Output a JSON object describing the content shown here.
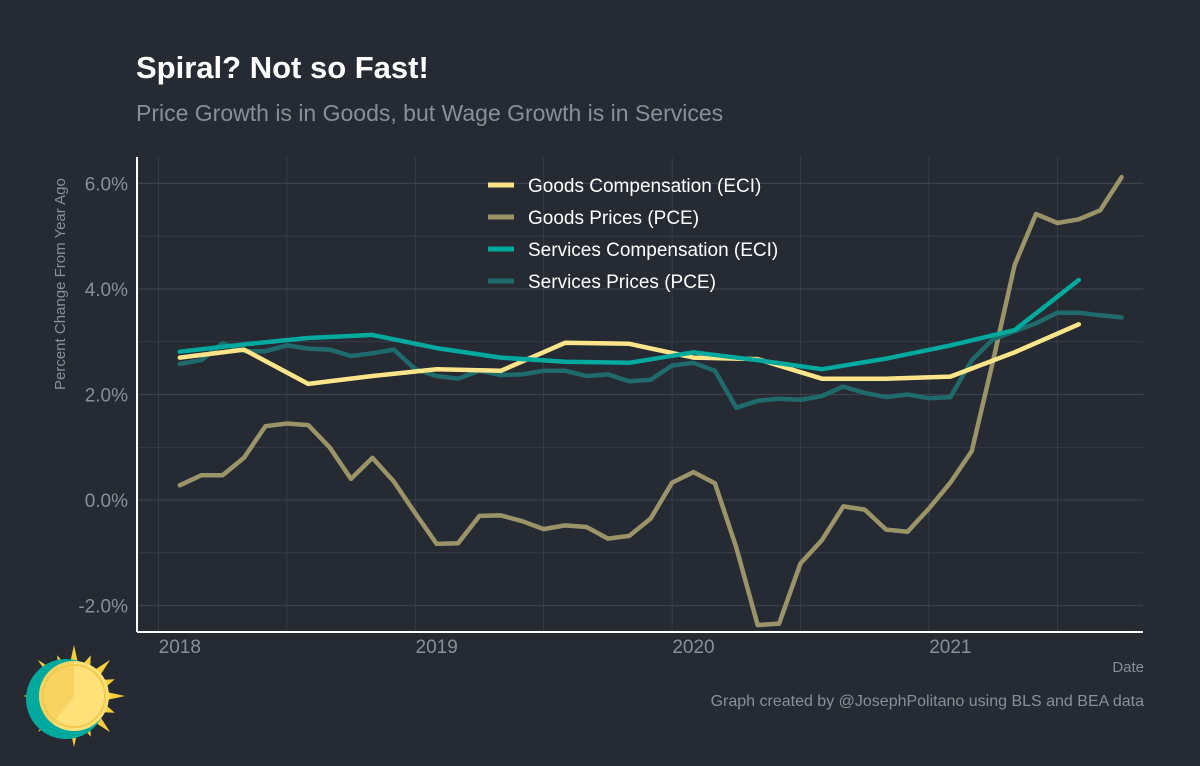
{
  "header": {
    "title": "Spiral? Not so Fast!",
    "subtitle": "Price Growth is in Goods, but Wage Growth is in Services"
  },
  "footer": {
    "caption": "Graph created by @JosephPolitano using BLS and BEA data"
  },
  "colors": {
    "background": "#252a33",
    "grid": "#3c424c",
    "axis": "#ffffff",
    "text_muted": "#8a8f97",
    "goods_compensation": "#ffe58a",
    "goods_prices": "#9b9469",
    "services_compensation": "#00a99d",
    "services_prices": "#1f6a6a"
  },
  "chart_data": {
    "type": "line",
    "title": "Spiral? Not so Fast!",
    "subtitle": "Price Growth is in Goods, but Wage Growth is in Services",
    "xlabel": "Date",
    "ylabel": "Percent Change From Year Ago",
    "x_ticks": [
      "2018",
      "2019",
      "2020",
      "2021"
    ],
    "y_ticks": [
      "-2.0%",
      "0.0%",
      "2.0%",
      "4.0%",
      "6.0%"
    ],
    "xlim": [
      "2017-11",
      "2021-10"
    ],
    "ylim": [
      -2.5,
      6.5
    ],
    "grid": true,
    "legend_position": "top-center",
    "series": [
      {
        "name": "Goods Compensation (ECI)",
        "color": "#ffe58a",
        "x": [
          "2018-01",
          "2018-04",
          "2018-07",
          "2018-10",
          "2019-01",
          "2019-04",
          "2019-07",
          "2019-10",
          "2020-01",
          "2020-04",
          "2020-07",
          "2020-10",
          "2021-01",
          "2021-04",
          "2021-07"
        ],
        "y": [
          2.7,
          2.85,
          2.2,
          2.35,
          2.48,
          2.45,
          2.98,
          2.96,
          2.7,
          2.67,
          2.3,
          2.3,
          2.34,
          2.8,
          3.33
        ]
      },
      {
        "name": "Goods Prices (PCE)",
        "color": "#9b9469",
        "x": [
          "2018-01",
          "2018-02",
          "2018-03",
          "2018-04",
          "2018-05",
          "2018-06",
          "2018-07",
          "2018-08",
          "2018-09",
          "2018-10",
          "2018-11",
          "2018-12",
          "2019-01",
          "2019-02",
          "2019-03",
          "2019-04",
          "2019-05",
          "2019-06",
          "2019-07",
          "2019-08",
          "2019-09",
          "2019-10",
          "2019-11",
          "2019-12",
          "2020-01",
          "2020-02",
          "2020-03",
          "2020-04",
          "2020-05",
          "2020-06",
          "2020-07",
          "2020-08",
          "2020-09",
          "2020-10",
          "2020-11",
          "2020-12",
          "2021-01",
          "2021-02",
          "2021-03",
          "2021-04",
          "2021-05",
          "2021-06",
          "2021-07",
          "2021-08",
          "2021-09"
        ],
        "y": [
          0.28,
          0.47,
          0.47,
          0.8,
          1.4,
          1.45,
          1.42,
          1.0,
          0.4,
          0.8,
          0.35,
          -0.25,
          -0.83,
          -0.82,
          -0.3,
          -0.29,
          -0.4,
          -0.55,
          -0.48,
          -0.51,
          -0.73,
          -0.68,
          -0.35,
          0.33,
          0.53,
          0.32,
          -0.9,
          -2.37,
          -2.34,
          -1.2,
          -0.76,
          -0.12,
          -0.18,
          -0.56,
          -0.6,
          -0.16,
          0.33,
          0.93,
          2.65,
          4.45,
          5.42,
          5.25,
          5.32,
          5.49,
          6.12
        ]
      },
      {
        "name": "Services Compensation (ECI)",
        "color": "#00a99d",
        "x": [
          "2018-01",
          "2018-04",
          "2018-07",
          "2018-10",
          "2019-01",
          "2019-04",
          "2019-07",
          "2019-10",
          "2020-01",
          "2020-04",
          "2020-07",
          "2020-10",
          "2021-01",
          "2021-04",
          "2021-07"
        ],
        "y": [
          2.81,
          2.95,
          3.07,
          3.13,
          2.88,
          2.7,
          2.62,
          2.6,
          2.8,
          2.65,
          2.48,
          2.68,
          2.93,
          3.22,
          4.17
        ]
      },
      {
        "name": "Services Prices (PCE)",
        "color": "#1f6a6a",
        "x": [
          "2018-01",
          "2018-02",
          "2018-03",
          "2018-04",
          "2018-05",
          "2018-06",
          "2018-07",
          "2018-08",
          "2018-09",
          "2018-10",
          "2018-11",
          "2018-12",
          "2019-01",
          "2019-02",
          "2019-03",
          "2019-04",
          "2019-05",
          "2019-06",
          "2019-07",
          "2019-08",
          "2019-09",
          "2019-10",
          "2019-11",
          "2019-12",
          "2020-01",
          "2020-02",
          "2020-03",
          "2020-04",
          "2020-05",
          "2020-06",
          "2020-07",
          "2020-08",
          "2020-09",
          "2020-10",
          "2020-11",
          "2020-12",
          "2021-01",
          "2021-02",
          "2021-03",
          "2021-04",
          "2021-05",
          "2021-06",
          "2021-07",
          "2021-08",
          "2021-09"
        ],
        "y": [
          2.58,
          2.65,
          2.97,
          2.82,
          2.82,
          2.93,
          2.87,
          2.85,
          2.73,
          2.78,
          2.85,
          2.48,
          2.35,
          2.3,
          2.45,
          2.37,
          2.38,
          2.45,
          2.45,
          2.35,
          2.38,
          2.25,
          2.28,
          2.55,
          2.6,
          2.45,
          1.75,
          1.88,
          1.92,
          1.9,
          1.97,
          2.15,
          2.03,
          1.95,
          2.0,
          1.93,
          1.95,
          2.65,
          3.05,
          3.2,
          3.35,
          3.55,
          3.55,
          3.5,
          3.46
        ]
      }
    ]
  }
}
